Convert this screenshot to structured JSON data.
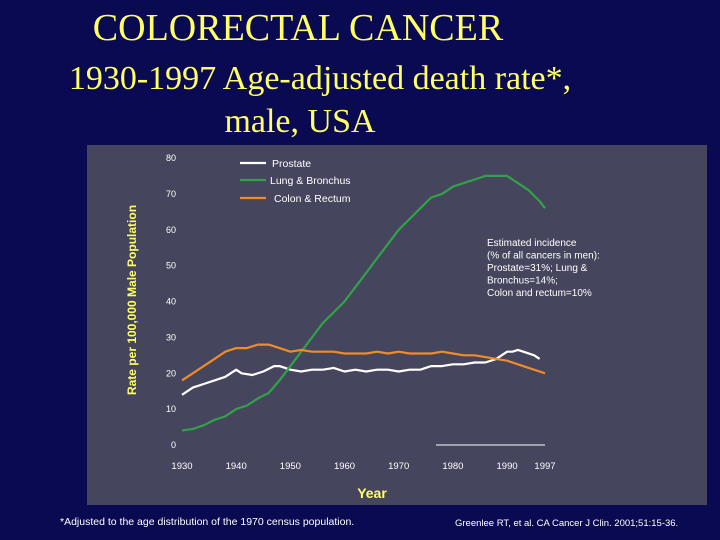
{
  "title": {
    "line1": "COLORECTAL CANCER",
    "line2": "1930-1997 Age-adjusted death rate*,",
    "line3": "male, USA"
  },
  "footnote": "*Adjusted to the age distribution of the 1970 census population.",
  "citation": "Greenlee RT, et al. CA Cancer J Clin. 2001;51:15-36.",
  "colors": {
    "background": "#0a0a52",
    "panel": "#45455d",
    "title": "#ffff66",
    "prostate": "#ffffff",
    "lung": "#33a04a",
    "colon": "#f08c28"
  },
  "chart_data": {
    "type": "line",
    "xlabel": "Year",
    "ylabel": "Rate per 100,000 Male Population",
    "xlim": [
      1930,
      1997
    ],
    "ylim": [
      0,
      80
    ],
    "xticks": [
      1930,
      1940,
      1950,
      1960,
      1970,
      1980,
      1990,
      1997
    ],
    "yticks": [
      0,
      10,
      20,
      30,
      40,
      50,
      60,
      70,
      80
    ],
    "grid": false,
    "legend_position": "top-left",
    "annotation": [
      "Estimated incidence",
      "(% of all cancers in men):",
      "Prostate=31%; Lung &",
      "Bronchus=14%;",
      "Colon and rectum=10%"
    ],
    "series": [
      {
        "name": "Prostate",
        "color": "#ffffff",
        "x": [
          1930,
          1932,
          1934,
          1936,
          1938,
          1940,
          1941,
          1943,
          1945,
          1947,
          1948,
          1950,
          1952,
          1954,
          1956,
          1958,
          1960,
          1962,
          1964,
          1966,
          1968,
          1970,
          1972,
          1974,
          1976,
          1978,
          1980,
          1982,
          1984,
          1986,
          1988,
          1990,
          1991,
          1992,
          1993,
          1995,
          1996
        ],
        "y": [
          14,
          16,
          17,
          18,
          19,
          21,
          20,
          19.5,
          20.5,
          22,
          22,
          21,
          20.5,
          21,
          21,
          21.5,
          20.5,
          21,
          20.5,
          21,
          21,
          20.5,
          21,
          21,
          22,
          22,
          22.5,
          22.5,
          23,
          23,
          24,
          26,
          26,
          26.5,
          26,
          25,
          24
        ]
      },
      {
        "name": "Lung & Bronchus",
        "color": "#33a04a",
        "x": [
          1930,
          1932,
          1934,
          1936,
          1938,
          1940,
          1942,
          1944,
          1946,
          1948,
          1950,
          1952,
          1954,
          1956,
          1958,
          1960,
          1962,
          1964,
          1966,
          1968,
          1970,
          1972,
          1974,
          1976,
          1978,
          1980,
          1982,
          1984,
          1986,
          1988,
          1990,
          1991,
          1992,
          1994,
          1996,
          1997
        ],
        "y": [
          4,
          4.5,
          5.5,
          7,
          8,
          10,
          11,
          13,
          14.5,
          18,
          22,
          26,
          30,
          34,
          37,
          40,
          44,
          48,
          52,
          56,
          60,
          63,
          66,
          69,
          70,
          72,
          73,
          74,
          75,
          75,
          75,
          74,
          73,
          71,
          68,
          66
        ]
      },
      {
        "name": "Colon & Rectum",
        "color": "#f08c28",
        "x": [
          1930,
          1932,
          1934,
          1936,
          1938,
          1940,
          1942,
          1944,
          1946,
          1948,
          1950,
          1952,
          1954,
          1956,
          1958,
          1960,
          1962,
          1964,
          1966,
          1968,
          1970,
          1972,
          1974,
          1976,
          1978,
          1980,
          1982,
          1984,
          1986,
          1988,
          1990,
          1992,
          1994,
          1996,
          1997
        ],
        "y": [
          18,
          20,
          22,
          24,
          26,
          27,
          27,
          28,
          28,
          27,
          26,
          26.5,
          26,
          26,
          26,
          25.5,
          25.5,
          25.5,
          26,
          25.5,
          26,
          25.5,
          25.5,
          25.5,
          26,
          25.5,
          25,
          25,
          24.5,
          24,
          23.5,
          22.5,
          21.5,
          20.5,
          20
        ]
      }
    ]
  }
}
